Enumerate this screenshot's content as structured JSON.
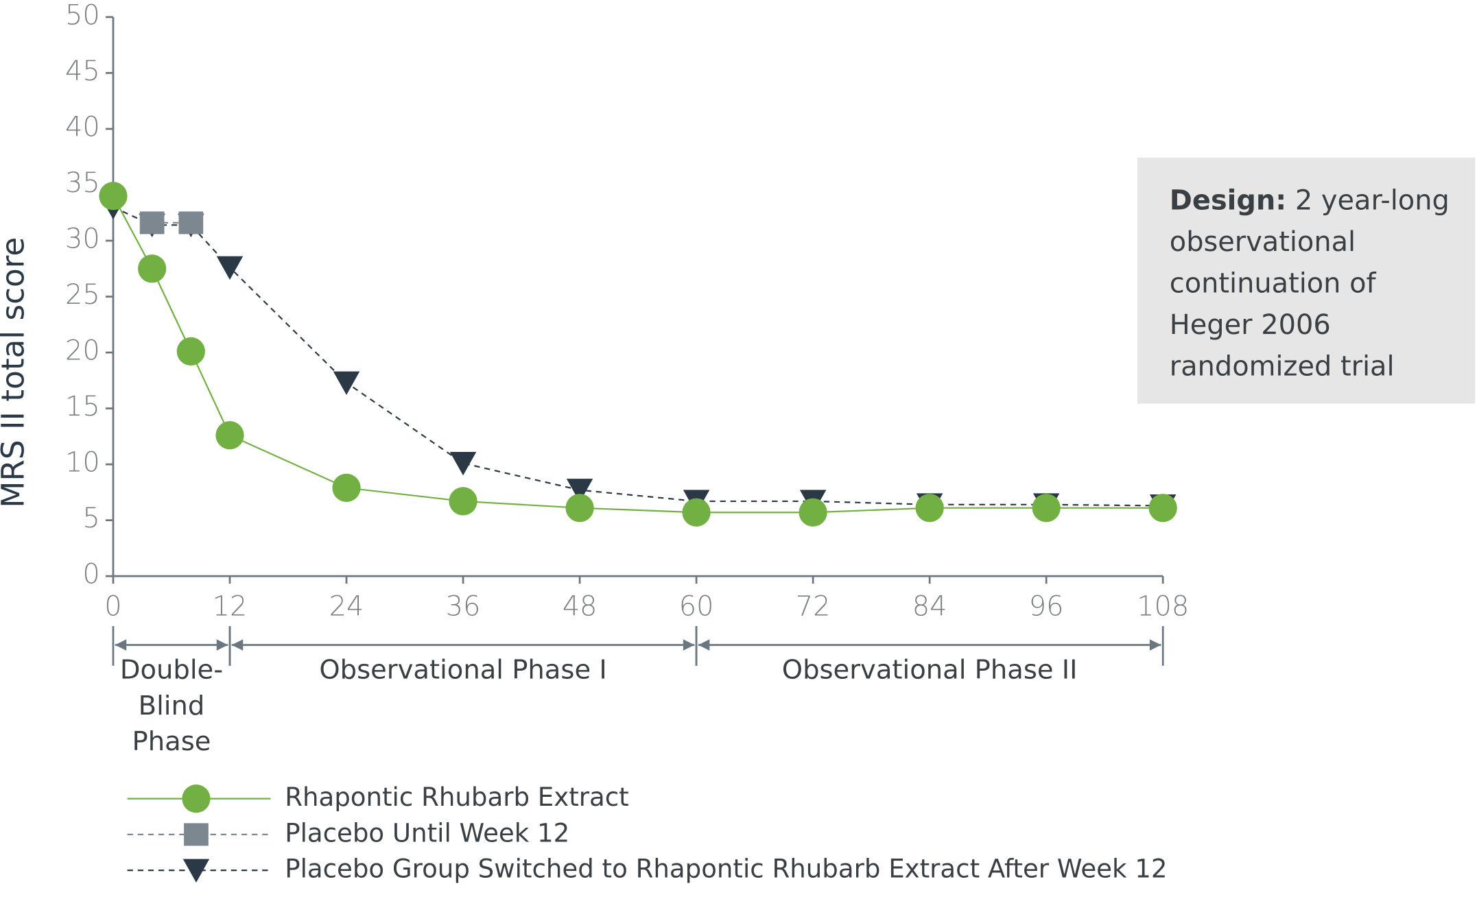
{
  "chart_data": {
    "type": "line",
    "y_label": "MRS II total score",
    "x": [
      0,
      4,
      8,
      12,
      24,
      36,
      48,
      60,
      72,
      84,
      96,
      108
    ],
    "series": [
      {
        "name": "Rhapontic Rhubarb Extract",
        "color": "#72b043",
        "marker": "circle",
        "dashed": false,
        "values": [
          34,
          27.5,
          20.1,
          12.6,
          7.9,
          6.7,
          6.1,
          5.7,
          5.7,
          6.1,
          6.1,
          6.1
        ]
      },
      {
        "name": "Placebo Until Week 12",
        "color": "#7d8790",
        "marker": "square",
        "dashed": true,
        "values": [
          null,
          31.6,
          31.6,
          null,
          null,
          null,
          null,
          null,
          null,
          null,
          null,
          null
        ]
      },
      {
        "name": "Placebo Group Switched to Rhapontic Rhubarb Extract After Week 12",
        "color": "#2b3845",
        "marker": "triangle",
        "dashed": true,
        "values": [
          33,
          31.4,
          31.4,
          27.6,
          17.3,
          10.1,
          7.7,
          6.7,
          6.7,
          6.4,
          6.4,
          6.3
        ]
      }
    ],
    "xlim": [
      0,
      108
    ],
    "xticks": [
      0,
      12,
      24,
      36,
      48,
      60,
      72,
      84,
      96,
      108
    ],
    "ylim": [
      0,
      50
    ],
    "yticks": [
      0,
      5,
      10,
      15,
      20,
      25,
      30,
      35,
      40,
      45,
      50
    ],
    "phases": [
      {
        "label": [
          "Double-",
          "Blind",
          "Phase"
        ],
        "start": 0,
        "end": 12
      },
      {
        "label": [
          "Observational Phase I"
        ],
        "start": 12,
        "end": 60
      },
      {
        "label": [
          "Observational Phase II"
        ],
        "start": 60,
        "end": 108
      }
    ],
    "design_note": {
      "label": "Design:",
      "text": "2 year-long observational continuation of Heger 2006 randomized trial"
    },
    "legend": "bottom-left"
  }
}
